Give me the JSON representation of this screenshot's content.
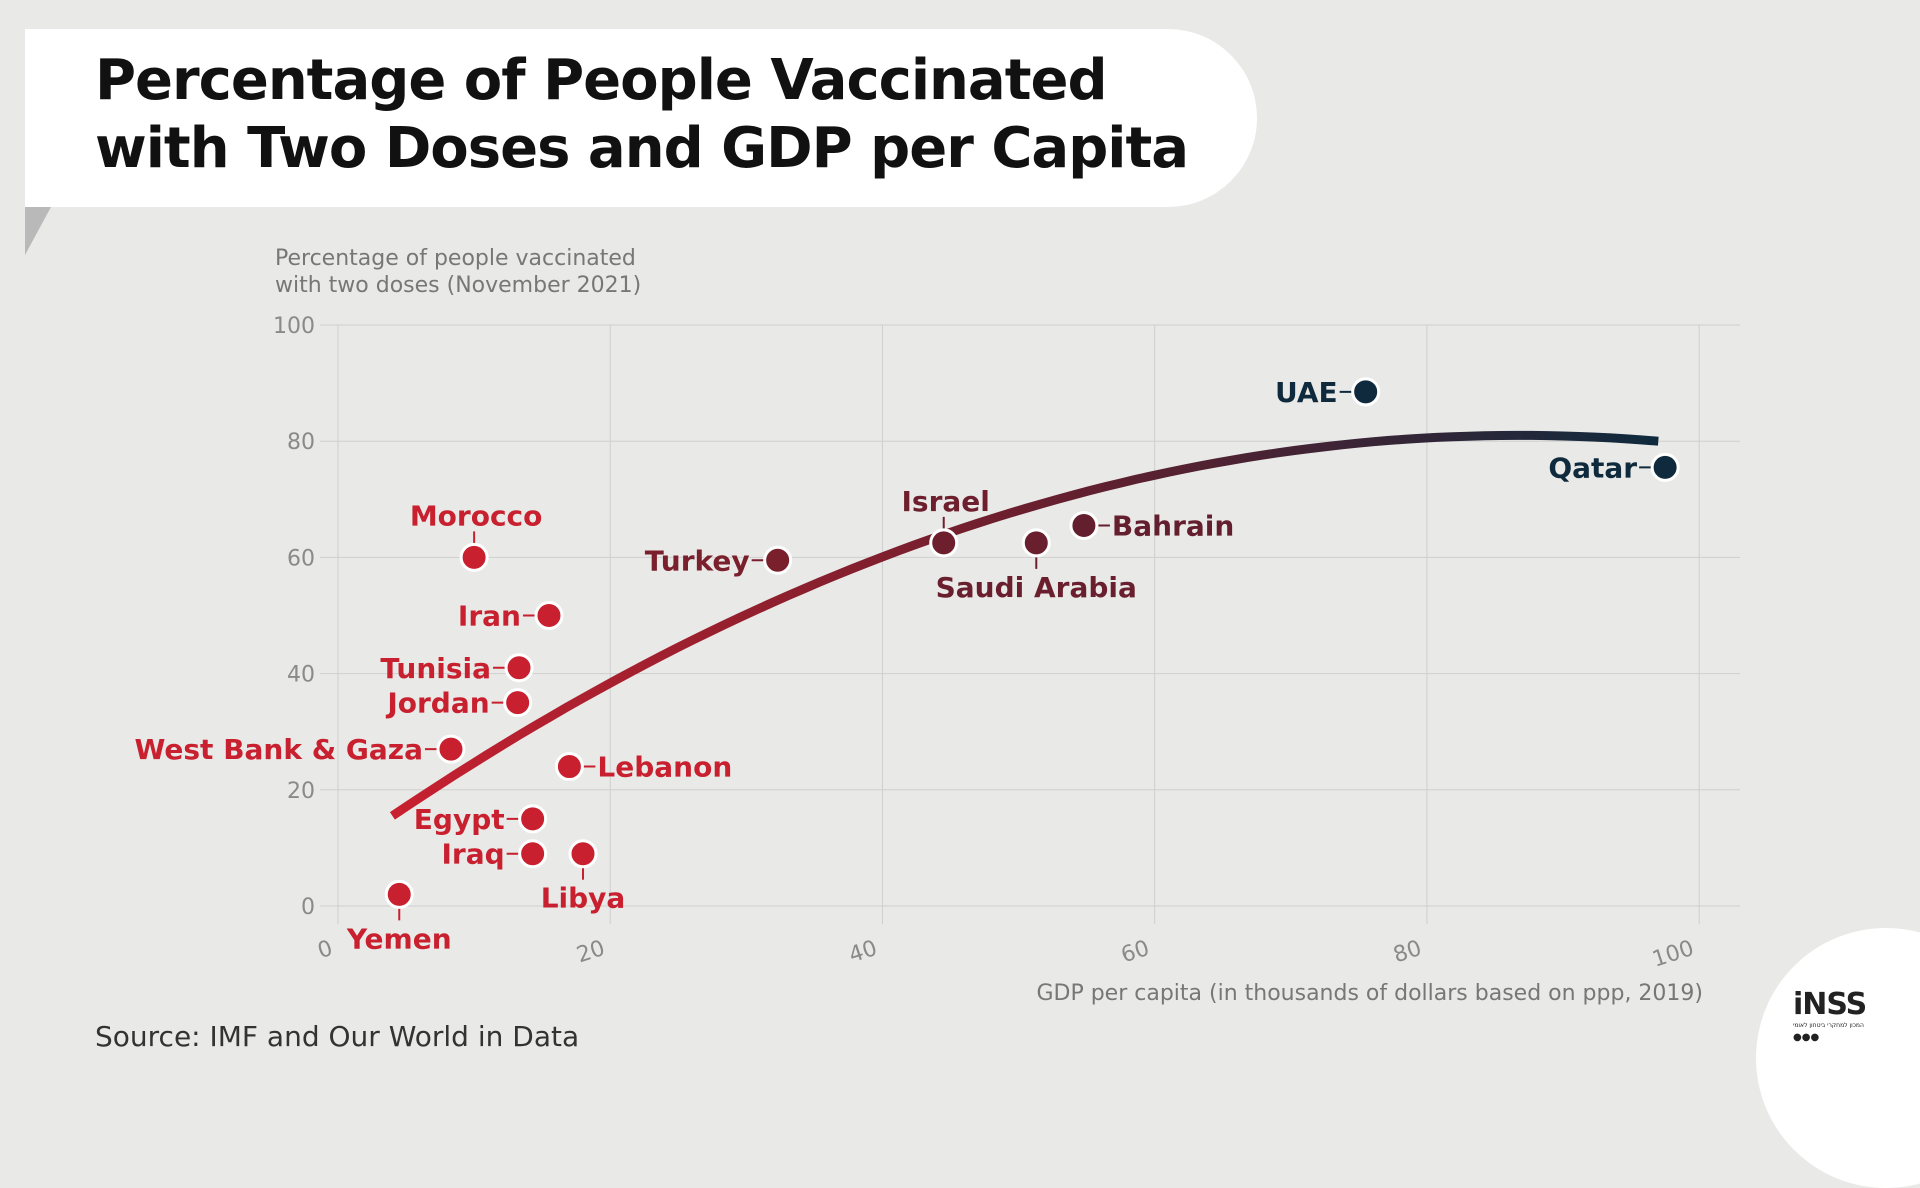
{
  "header": {
    "title_line1": "Percentage of People Vaccinated",
    "title_line2": "with Two Doses and GDP per Capita"
  },
  "footer": {
    "source": "Source: IMF and Our World in Data"
  },
  "logo": {
    "text": "iNSS",
    "subtitle": "המכון למחקרי ביטחון לאומי",
    "dots": "●●●"
  },
  "colors": {
    "low": "#c8202f",
    "mid": "#6a1f2e",
    "high": "#0f2a3d",
    "grid": "#cfcfcf",
    "axis_text": "#8a8a8a"
  },
  "chart_data": {
    "type": "scatter",
    "ylabel_line1": "Percentage of people vaccinated",
    "ylabel_line2": "with two doses (November 2021)",
    "xlabel": "GDP per capita (in thousands of dollars based on ppp, 2019)",
    "xlim": [
      0,
      103
    ],
    "ylim": [
      0,
      100
    ],
    "x_ticks": [
      0,
      20,
      40,
      60,
      80,
      100
    ],
    "y_ticks": [
      0,
      20,
      40,
      60,
      80,
      100
    ],
    "grid": true,
    "points": [
      {
        "label": "Yemen",
        "x": 4.5,
        "y": 2,
        "color": "#c8202f",
        "side": "below"
      },
      {
        "label": "Morocco",
        "x": 10,
        "y": 60,
        "color": "#c8202f",
        "side": "above"
      },
      {
        "label": "Iran",
        "x": 15.5,
        "y": 50,
        "color": "#c8202f",
        "side": "left"
      },
      {
        "label": "Tunisia",
        "x": 13.3,
        "y": 41,
        "color": "#c8202f",
        "side": "left"
      },
      {
        "label": "Jordan",
        "x": 13.2,
        "y": 35,
        "color": "#c8202f",
        "side": "left"
      },
      {
        "label": "West Bank & Gaza",
        "x": 8.3,
        "y": 27,
        "color": "#c8202f",
        "side": "left"
      },
      {
        "label": "Lebanon",
        "x": 17,
        "y": 24,
        "color": "#c8202f",
        "side": "right"
      },
      {
        "label": "Egypt",
        "x": 14.3,
        "y": 15,
        "color": "#c8202f",
        "side": "left"
      },
      {
        "label": "Iraq",
        "x": 14.3,
        "y": 9,
        "color": "#c8202f",
        "side": "left"
      },
      {
        "label": "Libya",
        "x": 18,
        "y": 9,
        "color": "#c8202f",
        "side": "below"
      },
      {
        "label": "Turkey",
        "x": 32.3,
        "y": 59.5,
        "color": "#7a1f2c",
        "side": "left"
      },
      {
        "label": "Israel",
        "x": 44.5,
        "y": 62.5,
        "color": "#6e1f2e",
        "side": "above"
      },
      {
        "label": "Saudi Arabia",
        "x": 51.3,
        "y": 62.5,
        "color": "#6a1f2e",
        "side": "below"
      },
      {
        "label": "Bahrain",
        "x": 54.8,
        "y": 65.5,
        "color": "#641f2e",
        "side": "right"
      },
      {
        "label": "UAE",
        "x": 75.5,
        "y": 88.5,
        "color": "#0f2a3d",
        "side": "left"
      },
      {
        "label": "Qatar",
        "x": 97.5,
        "y": 75.5,
        "color": "#0f2a3d",
        "side": "left"
      }
    ],
    "trend": {
      "type": "quadratic",
      "x_start": 4,
      "x_end": 97,
      "points": [
        [
          4,
          15.5
        ],
        [
          86.5,
          81
        ],
        [
          97,
          80
        ]
      ]
    }
  }
}
